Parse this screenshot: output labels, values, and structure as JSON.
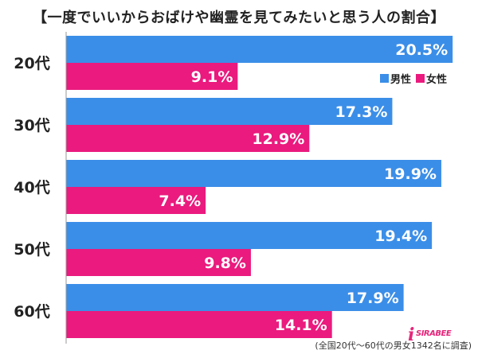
{
  "title": "【一度でいいからおばけや幽霊を見てみたいと思う人の割合】",
  "note": "(全国20代～60代の男女1342名に調査)",
  "logo_text": "SIRABEE",
  "colors": {
    "male": "#3b8ee8",
    "female": "#ea1a7e",
    "axis": "#999999"
  },
  "chart_data": {
    "type": "bar",
    "orientation": "horizontal",
    "categories": [
      "20代",
      "30代",
      "40代",
      "50代",
      "60代"
    ],
    "series": [
      {
        "name": "男性",
        "values": [
          20.5,
          17.3,
          19.9,
          19.4,
          17.9
        ]
      },
      {
        "name": "女性",
        "values": [
          9.1,
          12.9,
          7.4,
          9.8,
          14.1
        ]
      }
    ],
    "value_format": "%",
    "xlim": [
      0,
      21
    ],
    "legend_position": "top-right",
    "grid": false
  }
}
